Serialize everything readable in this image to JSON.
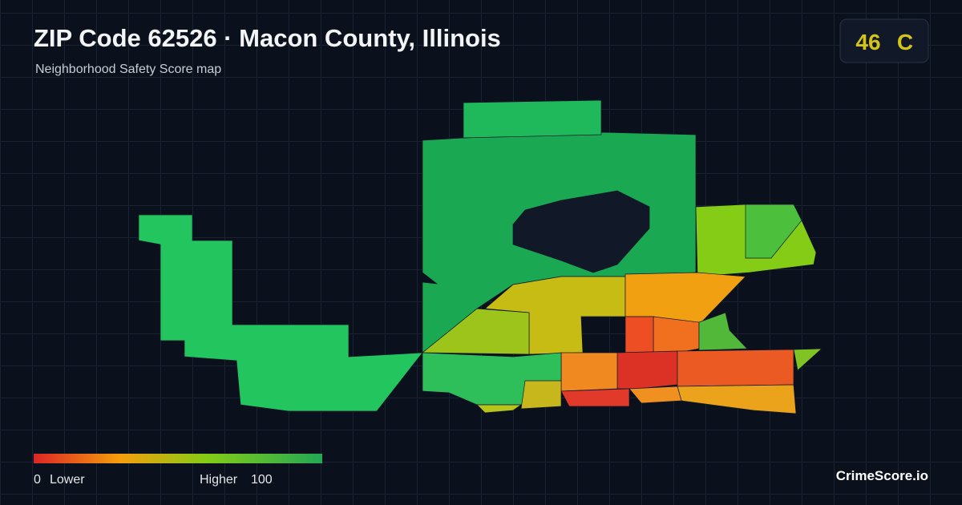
{
  "header": {
    "title": "ZIP Code 62526 · Macon County, Illinois",
    "subtitle": "Neighborhood Safety Score map"
  },
  "score": {
    "value": 46,
    "grade": "C"
  },
  "legend": {
    "min": 0,
    "min_label": "Lower",
    "max_label": "Higher",
    "max": 100
  },
  "brand": "CrimeScore.io"
}
